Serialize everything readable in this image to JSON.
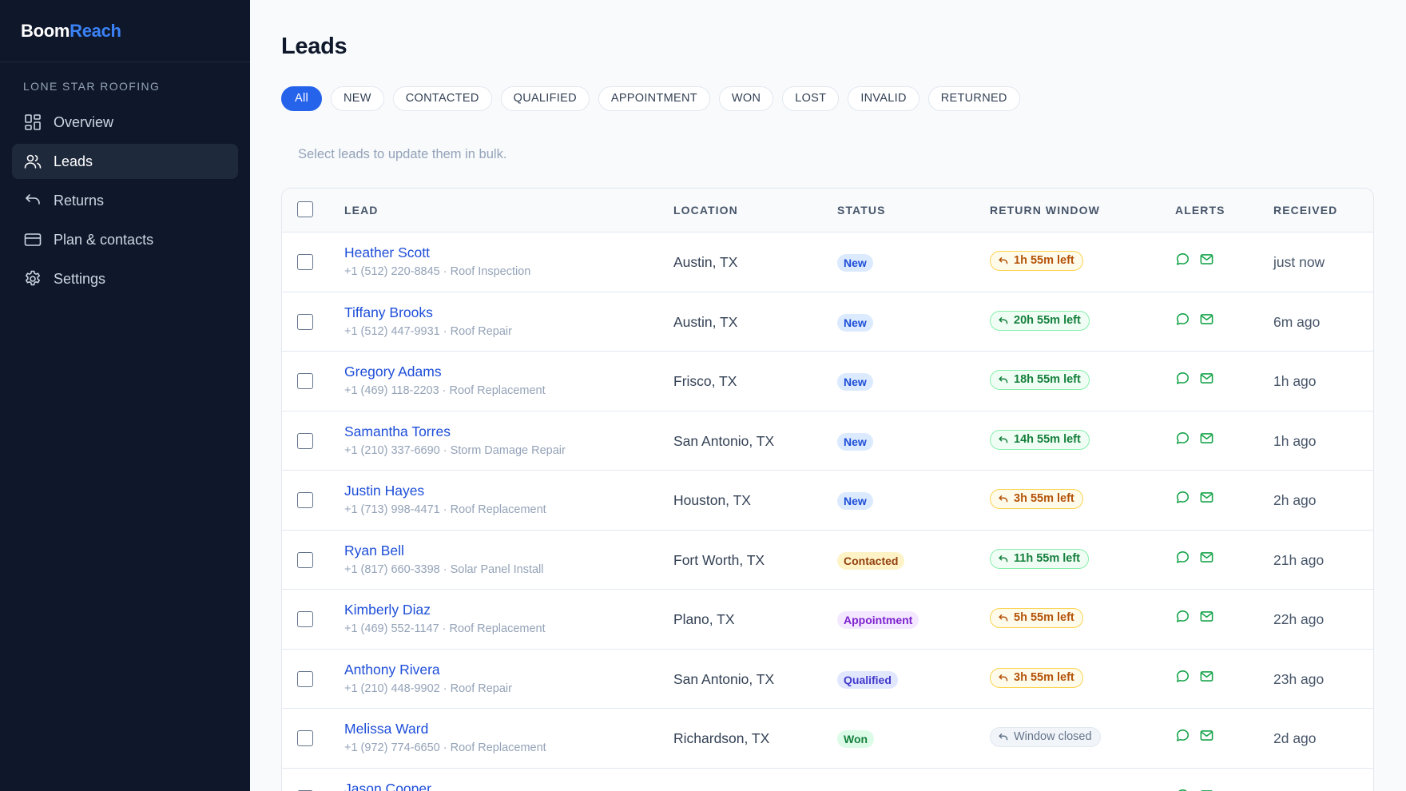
{
  "brand": {
    "part1": "Boom",
    "part2": "Reach"
  },
  "org_name": "LONE STAR ROOFING",
  "nav": [
    {
      "label": "Overview",
      "icon": "grid-icon",
      "active": false
    },
    {
      "label": "Leads",
      "icon": "users-icon",
      "active": true
    },
    {
      "label": "Returns",
      "icon": "return-icon",
      "active": false
    },
    {
      "label": "Plan & contacts",
      "icon": "credit-card-icon",
      "active": false
    },
    {
      "label": "Settings",
      "icon": "gear-icon",
      "active": false
    }
  ],
  "page_title": "Leads",
  "filters": [
    "All",
    "NEW",
    "CONTACTED",
    "QUALIFIED",
    "APPOINTMENT",
    "WON",
    "LOST",
    "INVALID",
    "RETURNED"
  ],
  "active_filter": "All",
  "bulk_hint": "Select leads to update them in bulk.",
  "columns": {
    "lead": "LEAD",
    "location": "LOCATION",
    "status": "STATUS",
    "return_window": "RETURN WINDOW",
    "alerts": "ALERTS",
    "received": "RECEIVED"
  },
  "colors": {
    "sidebar_bg": "#0f172a",
    "accent": "#2563eb",
    "link": "#1d4ed8"
  },
  "rows": [
    {
      "name": "Heather Scott",
      "sub": "+1 (512) 220-8845 · Roof Inspection",
      "location": "Austin, TX",
      "status": "New",
      "status_kind": "new",
      "window": "1h 55m left",
      "window_kind": "amber",
      "received": "just now"
    },
    {
      "name": "Tiffany Brooks",
      "sub": "+1 (512) 447-9931 · Roof Repair",
      "location": "Austin, TX",
      "status": "New",
      "status_kind": "new",
      "window": "20h 55m left",
      "window_kind": "green",
      "received": "6m ago"
    },
    {
      "name": "Gregory Adams",
      "sub": "+1 (469) 118-2203 · Roof Replacement",
      "location": "Frisco, TX",
      "status": "New",
      "status_kind": "new",
      "window": "18h 55m left",
      "window_kind": "green",
      "received": "1h ago"
    },
    {
      "name": "Samantha Torres",
      "sub": "+1 (210) 337-6690 · Storm Damage Repair",
      "location": "San Antonio, TX",
      "status": "New",
      "status_kind": "new",
      "window": "14h 55m left",
      "window_kind": "green",
      "received": "1h ago"
    },
    {
      "name": "Justin Hayes",
      "sub": "+1 (713) 998-4471 · Roof Replacement",
      "location": "Houston, TX",
      "status": "New",
      "status_kind": "new",
      "window": "3h 55m left",
      "window_kind": "amber",
      "received": "2h ago"
    },
    {
      "name": "Ryan Bell",
      "sub": "+1 (817) 660-3398 · Solar Panel Install",
      "location": "Fort Worth, TX",
      "status": "Contacted",
      "status_kind": "contacted",
      "window": "11h 55m left",
      "window_kind": "green",
      "received": "21h ago"
    },
    {
      "name": "Kimberly Diaz",
      "sub": "+1 (469) 552-1147 · Roof Replacement",
      "location": "Plano, TX",
      "status": "Appointment",
      "status_kind": "appointment",
      "window": "5h 55m left",
      "window_kind": "amber",
      "received": "22h ago"
    },
    {
      "name": "Anthony Rivera",
      "sub": "+1 (210) 448-9902 · Roof Repair",
      "location": "San Antonio, TX",
      "status": "Qualified",
      "status_kind": "qualified",
      "window": "3h 55m left",
      "window_kind": "amber",
      "received": "23h ago"
    },
    {
      "name": "Melissa Ward",
      "sub": "+1 (972) 774-6650 · Roof Replacement",
      "location": "Richardson, TX",
      "status": "Won",
      "status_kind": "won",
      "window": "Window closed",
      "window_kind": "gray",
      "received": "2d ago"
    },
    {
      "name": "Jason Cooper",
      "sub": "",
      "location": "",
      "status": "",
      "status_kind": "contacted",
      "window": "",
      "window_kind": "gray",
      "received": ""
    }
  ]
}
